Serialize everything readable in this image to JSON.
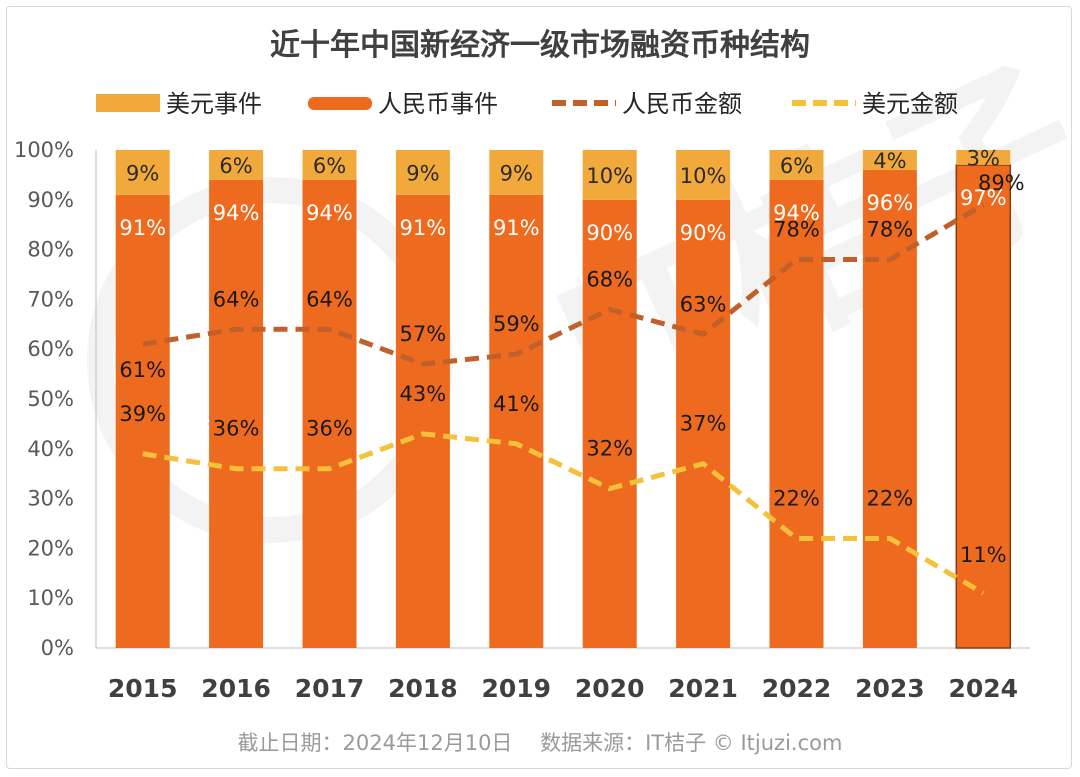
{
  "chart_data": {
    "type": "bar",
    "title": "近十年中国新经济一级市场融资币种结构",
    "categories": [
      "2015",
      "2016",
      "2017",
      "2018",
      "2019",
      "2020",
      "2021",
      "2022",
      "2023",
      "2024"
    ],
    "ylim": [
      0,
      100
    ],
    "yticks": [
      "0%",
      "10%",
      "20%",
      "30%",
      "40%",
      "50%",
      "60%",
      "70%",
      "80%",
      "90%",
      "100%"
    ],
    "legend_position": "top",
    "series": [
      {
        "name": "美元事件",
        "kind": "stacked-bar",
        "color": "#F2A93B",
        "values": [
          9,
          6,
          6,
          9,
          9,
          10,
          10,
          6,
          4,
          3
        ],
        "labels": [
          "9%",
          "6%",
          "6%",
          "9%",
          "9%",
          "10%",
          "10%",
          "6%",
          "4%",
          "3%"
        ]
      },
      {
        "name": "人民币事件",
        "kind": "stacked-bar",
        "color": "#EE6A1E",
        "values": [
          91,
          94,
          94,
          91,
          91,
          90,
          90,
          94,
          96,
          97
        ],
        "labels": [
          "91%",
          "94%",
          "94%",
          "91%",
          "91%",
          "90%",
          "90%",
          "94%",
          "96%",
          "97%"
        ]
      },
      {
        "name": "人民币金额",
        "kind": "dashed-line",
        "color": "#C0602A",
        "values": [
          61,
          64,
          64,
          57,
          59,
          68,
          63,
          78,
          78,
          89
        ],
        "labels": [
          "61%",
          "64%",
          "64%",
          "57%",
          "59%",
          "68%",
          "63%",
          "78%",
          "78%",
          "89%"
        ]
      },
      {
        "name": "美元金额",
        "kind": "dashed-line",
        "color": "#F5C03A",
        "values": [
          39,
          36,
          36,
          43,
          41,
          32,
          37,
          22,
          22,
          11
        ],
        "labels": [
          "39%",
          "36%",
          "36%",
          "43%",
          "41%",
          "32%",
          "37%",
          "22%",
          "22%",
          "11%"
        ]
      }
    ],
    "grid": false
  },
  "footer": "截止日期：2024年12月10日　 数据来源：IT桔子 © Itjuzi.com"
}
